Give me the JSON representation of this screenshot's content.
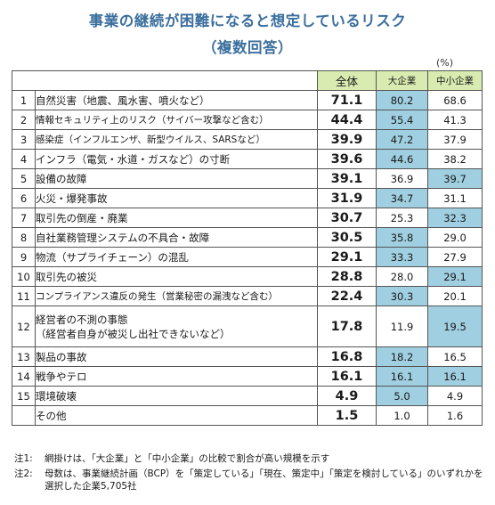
{
  "title_line1": "事業の継続が困難になると想定しているリスク",
  "title_line2": "（複数回答）",
  "unit": "(%)",
  "headers": {
    "all": "全体",
    "large": "大企業",
    "small": "中小企業"
  },
  "rows": [
    {
      "no": "1",
      "item": "自然災害（地震、風水害、噴火など）",
      "all": "71.1",
      "large": "80.2",
      "small": "68.6"
    },
    {
      "no": "2",
      "item": "情報セキュリティ上のリスク（サイバー攻撃など含む）",
      "all": "44.4",
      "large": "55.4",
      "small": "41.3"
    },
    {
      "no": "3",
      "item": "感染症（インフルエンザ、新型ウイルス、SARSなど）",
      "all": "39.9",
      "large": "47.2",
      "small": "37.9"
    },
    {
      "no": "4",
      "item": "インフラ（電気・水道・ガスなど）の寸断",
      "all": "39.6",
      "large": "44.6",
      "small": "38.2"
    },
    {
      "no": "5",
      "item": "設備の故障",
      "all": "39.1",
      "large": "36.9",
      "small": "39.7"
    },
    {
      "no": "6",
      "item": "火災・爆発事故",
      "all": "31.9",
      "large": "34.7",
      "small": "31.1"
    },
    {
      "no": "7",
      "item": "取引先の倒産・廃業",
      "all": "30.7",
      "large": "25.3",
      "small": "32.3"
    },
    {
      "no": "8",
      "item": "自社業務管理システムの不具合・故障",
      "all": "30.5",
      "large": "35.8",
      "small": "29.0"
    },
    {
      "no": "9",
      "item": "物流（サプライチェーン）の混乱",
      "all": "29.1",
      "large": "33.3",
      "small": "27.9"
    },
    {
      "no": "10",
      "item": "取引先の被災",
      "all": "28.8",
      "large": "28.0",
      "small": "29.1"
    },
    {
      "no": "11",
      "item": "コンプライアンス違反の発生（営業秘密の漏洩など含む）",
      "all": "22.4",
      "large": "30.3",
      "small": "20.1"
    },
    {
      "no": "12",
      "item": "経営者の不測の事態",
      "item2": "（経営者自身が被災し出社できないなど）",
      "all": "17.8",
      "large": "11.9",
      "small": "19.5"
    },
    {
      "no": "13",
      "item": "製品の事故",
      "all": "16.8",
      "large": "18.2",
      "small": "16.5"
    },
    {
      "no": "14",
      "item": "戦争やテロ",
      "all": "16.1",
      "large": "16.1",
      "small": "16.1"
    },
    {
      "no": "15",
      "item": "環境破壊",
      "all": "4.9",
      "large": "5.0",
      "small": "4.9"
    },
    {
      "no": "",
      "item": "その他",
      "all": "1.5",
      "large": "1.0",
      "small": "1.6"
    }
  ],
  "highlight": [
    "large",
    "large",
    "large",
    "large",
    "small",
    "large",
    "small",
    "large",
    "large",
    "small",
    "large",
    "small",
    "large",
    "both",
    "large",
    "none"
  ],
  "highlight_color": "#9fcfe0",
  "header_color": "#d9ebb0",
  "title_color": "#3b6f9e",
  "notes": [
    {
      "label": "注1:",
      "text": "網掛けは、「大企業」と「中小企業」の比較で割合が高い規模を示す"
    },
    {
      "label": "注2:",
      "text": "母数は、事業継続計画（BCP）を「策定している」「現在、策定中」「策定を検討している」のいずれかを選択した企業5,705社"
    }
  ]
}
